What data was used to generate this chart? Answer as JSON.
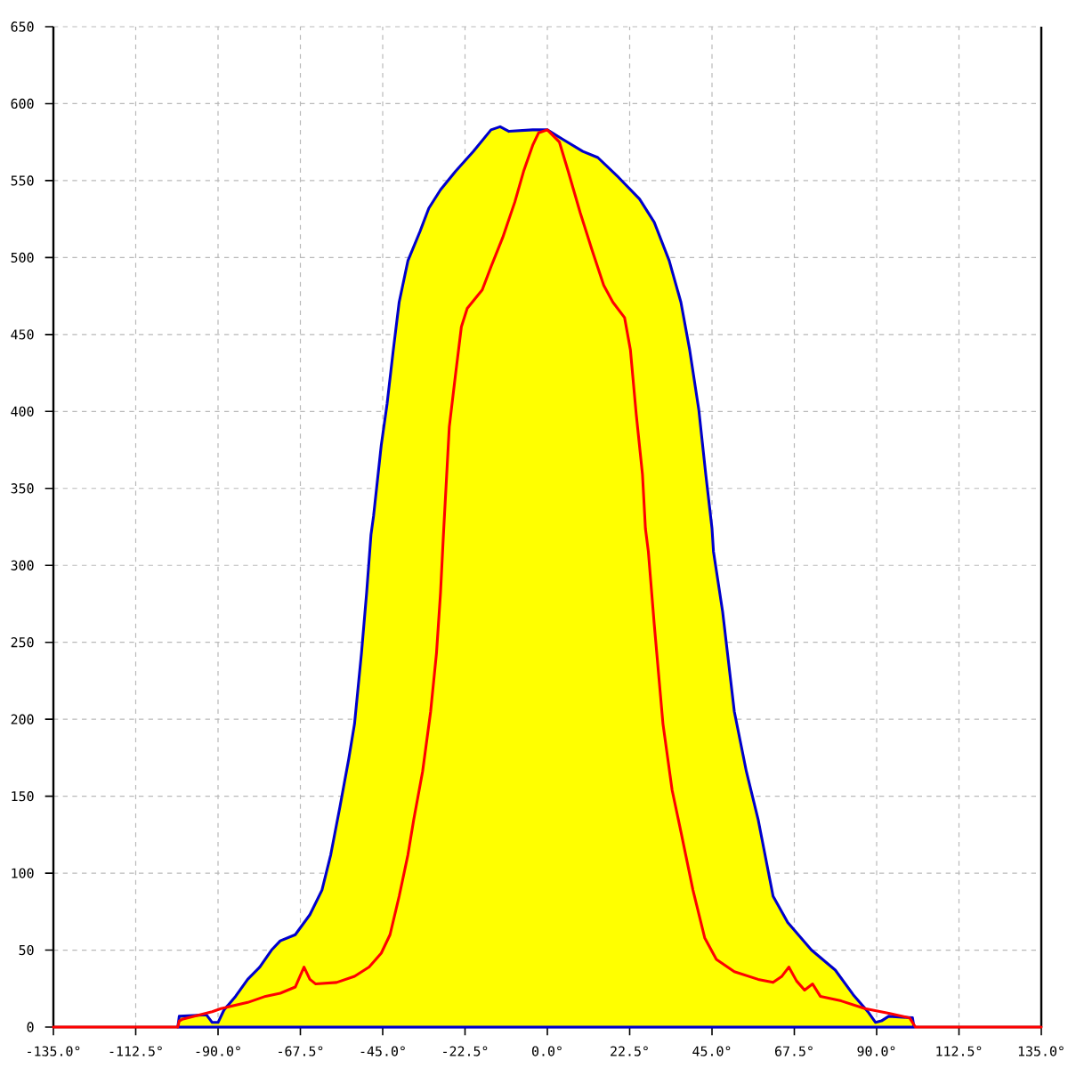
{
  "chart_data": {
    "type": "area",
    "xlim": [
      -135,
      135
    ],
    "ylim": [
      0,
      650
    ],
    "xticks": [
      {
        "value": -135,
        "label": "-135.0°"
      },
      {
        "value": -112.5,
        "label": "-112.5°"
      },
      {
        "value": -90,
        "label": "-90.0°"
      },
      {
        "value": -67.5,
        "label": "-67.5°"
      },
      {
        "value": -45,
        "label": "-45.0°"
      },
      {
        "value": -22.5,
        "label": "-22.5°"
      },
      {
        "value": 0,
        "label": "0.0°"
      },
      {
        "value": 22.5,
        "label": "22.5°"
      },
      {
        "value": 45,
        "label": "45.0°"
      },
      {
        "value": 67.5,
        "label": "67.5°"
      },
      {
        "value": 90,
        "label": "90.0°"
      },
      {
        "value": 112.5,
        "label": "112.5°"
      },
      {
        "value": 135,
        "label": "135.0°"
      }
    ],
    "yticks": [
      0,
      50,
      100,
      150,
      200,
      250,
      300,
      350,
      400,
      450,
      500,
      550,
      600,
      650
    ],
    "grid": true,
    "series": [
      {
        "color": "#0000cc",
        "x": [
          -101,
          -100.6,
          -93.2,
          -91.6,
          -90,
          -88.4,
          -85.2,
          -81.9,
          -78.6,
          -75.4,
          -73,
          -68.9,
          -64.9,
          -61.6,
          -59.2,
          -56.7,
          -54.3,
          -52.7,
          -50.8,
          -49.4,
          -48.2,
          -47.5,
          -45.4,
          -43.8,
          -42.1,
          -40.5,
          -38.1,
          -34.8,
          -32.4,
          -29.2,
          -25.1,
          -20.2,
          -15.4,
          -12.9,
          -10.5,
          -4,
          0,
          4.1,
          9.7,
          13.8,
          19.5,
          25.2,
          29.2,
          33.3,
          36.5,
          38.9,
          41.4,
          43.3,
          45,
          45.4,
          47.9,
          51.1,
          54.4,
          57.6,
          61.7,
          65.7,
          72.2,
          78.7,
          83.6,
          87.6,
          89.7,
          91.3,
          93.3,
          99.8,
          100.2
        ],
        "values": [
          0,
          7,
          8,
          3,
          3,
          11,
          20,
          31,
          39,
          50,
          56,
          60,
          73,
          89,
          112,
          143,
          174,
          197,
          243,
          282,
          320,
          332,
          378,
          405,
          440,
          471,
          498,
          517,
          532,
          544,
          556,
          569,
          583,
          585,
          582,
          583,
          583,
          577,
          569,
          565,
          552,
          538,
          523,
          498,
          471,
          440,
          401,
          359,
          324,
          309,
          270,
          205,
          166,
          135,
          85,
          68,
          50,
          37,
          21,
          10,
          3,
          4,
          7,
          6,
          0
        ]
      },
      {
        "type": "line",
        "color": "#ff0000",
        "x": [
          -135,
          -101,
          -100.6,
          -99.8,
          -91.6,
          -89.2,
          -81.9,
          -77,
          -73,
          -68.9,
          -67.6,
          -66.5,
          -64.9,
          -63.3,
          -57.6,
          -52.7,
          -48.7,
          -45.4,
          -43,
          -40.5,
          -38.1,
          -36.5,
          -34.1,
          -31.9,
          -30.3,
          -29.2,
          -28.4,
          -26.8,
          -25.1,
          -23.5,
          -21.9,
          -17.8,
          -15.4,
          -12.2,
          -8.9,
          -6.5,
          -4,
          -2.4,
          0,
          3.3,
          5.7,
          9,
          12.2,
          15.4,
          17.9,
          21.1,
          22.7,
          24.3,
          26,
          26.8,
          27.6,
          29.2,
          31.6,
          34.1,
          36.5,
          39.8,
          43,
          46.2,
          51.1,
          57.6,
          61.7,
          64.1,
          66,
          68.1,
          70.3,
          72.5,
          74.6,
          80.3,
          86.8,
          93.3,
          99,
          100.6,
          135
        ],
        "values": [
          0,
          0,
          4,
          5,
          10,
          12,
          16,
          20,
          22,
          26,
          33,
          39,
          31,
          28,
          29,
          33,
          39,
          48,
          60,
          85,
          112,
          135,
          166,
          205,
          243,
          282,
          320,
          390,
          424,
          455,
          467,
          479,
          494,
          513,
          536,
          556,
          573,
          581,
          583,
          575,
          556,
          529,
          505,
          482,
          471,
          461,
          440,
          398,
          359,
          324,
          309,
          262,
          197,
          154,
          127,
          89,
          58,
          44,
          36,
          31,
          29,
          33,
          39,
          30,
          24,
          28,
          20,
          17,
          12,
          9,
          6,
          0,
          0
        ]
      }
    ]
  }
}
